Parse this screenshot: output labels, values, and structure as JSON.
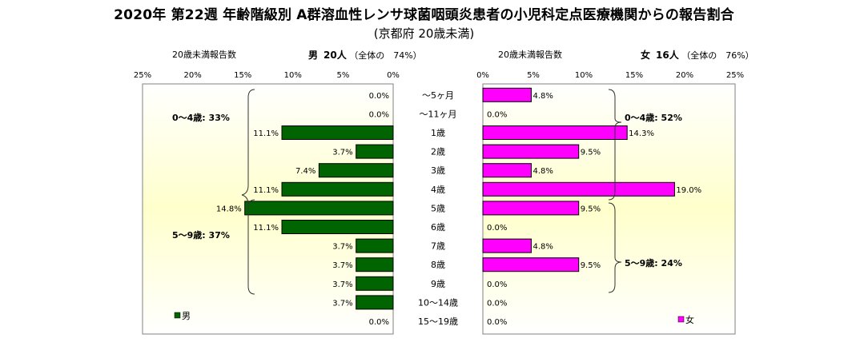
{
  "title": "2020年 第22週 年齢階級別 A群溶血性レンサ球菌咽頭炎患者の小児科定点医療機関からの報告割合",
  "subtitle": "(京都府 20歳未満)",
  "colors": {
    "male": "#006400",
    "female": "#ff00ff",
    "plot_bg": "#ffffcc"
  },
  "left_panel": {
    "report_label": "20歳未満報告数",
    "sex_label": "男",
    "count": "20人",
    "share": "（全体の　74%）",
    "legend": "男",
    "group_0_4": "0～4歳: 33%",
    "group_5_9": "5～9歳: 37%"
  },
  "right_panel": {
    "report_label": "20歳未満報告数",
    "sex_label": "女",
    "count": "16人",
    "share": "（全体の　76%）",
    "legend": "女",
    "group_0_4": "0～4歳: 52%",
    "group_5_9": "5～9歳: 24%"
  },
  "chart_data": {
    "type": "bar",
    "orientation": "horizontal",
    "categories": [
      "～5ヶ月",
      "～11ヶ月",
      "1歳",
      "2歳",
      "3歳",
      "4歳",
      "5歳",
      "6歳",
      "7歳",
      "8歳",
      "9歳",
      "10～14歳",
      "15～19歳"
    ],
    "x_ticks_left": [
      "25%",
      "20%",
      "15%",
      "10%",
      "5%",
      "0%"
    ],
    "x_ticks_right": [
      "0%",
      "5%",
      "10%",
      "15%",
      "20%",
      "25%"
    ],
    "xlim": [
      0,
      25
    ],
    "series": [
      {
        "name": "男",
        "values": [
          0.0,
          0.0,
          11.1,
          3.7,
          7.4,
          11.1,
          14.8,
          11.1,
          3.7,
          3.7,
          3.7,
          3.7,
          0.0
        ],
        "labels": [
          "0.0%",
          "0.0%",
          "11.1%",
          "3.7%",
          "7.4%",
          "11.1%",
          "14.8%",
          "11.1%",
          "3.7%",
          "3.7%",
          "3.7%",
          "3.7%",
          "0.0%"
        ]
      },
      {
        "name": "女",
        "values": [
          4.8,
          0.0,
          14.3,
          9.5,
          4.8,
          19.0,
          9.5,
          0.0,
          4.8,
          9.5,
          0.0,
          0.0,
          0.0
        ],
        "labels": [
          "4.8%",
          "0.0%",
          "14.3%",
          "9.5%",
          "4.8%",
          "19.0%",
          "9.5%",
          "0.0%",
          "4.8%",
          "9.5%",
          "0.0%",
          "0.0%",
          "0.0%"
        ]
      }
    ]
  }
}
